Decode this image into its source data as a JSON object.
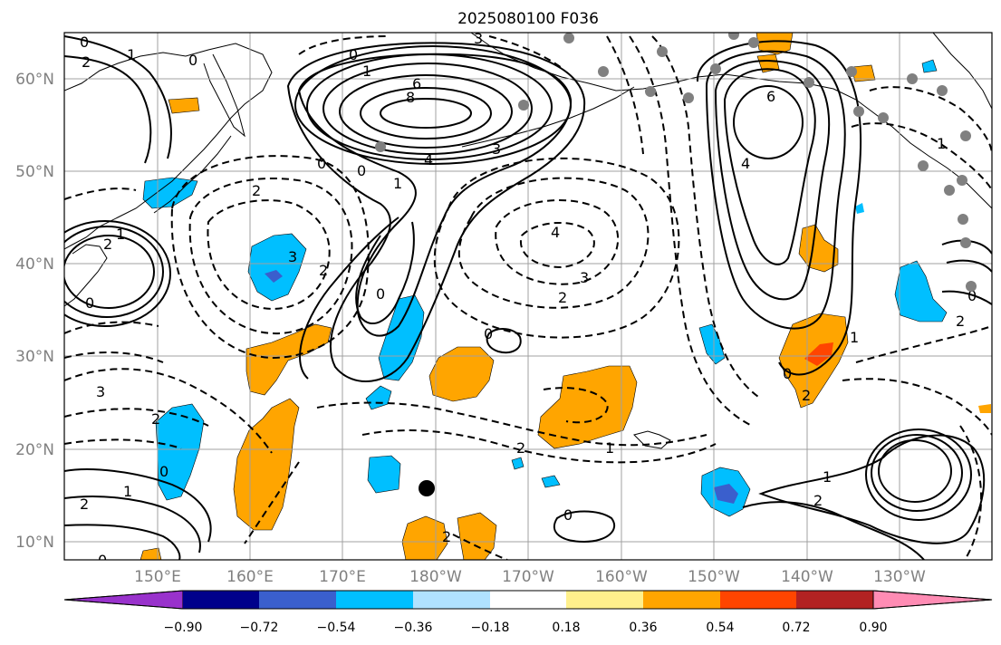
{
  "title": "2025080100 F036",
  "lat_labels": [
    "60°N",
    "50°N",
    "40°N",
    "30°N",
    "20°N",
    "10°N"
  ],
  "lon_labels": [
    "150°E",
    "160°E",
    "170°E",
    "180°W",
    "170°W",
    "160°W",
    "150°W",
    "140°W",
    "130°W"
  ],
  "colorbar": {
    "tick_labels": [
      "−0.90",
      "−0.72",
      "−0.54",
      "−0.36",
      "−0.18",
      "0.18",
      "0.36",
      "0.54",
      "0.72",
      "0.90"
    ],
    "colors": [
      "#9932cc",
      "#00008b",
      "#3a5fcd",
      "#00bfff",
      "#b0e2ff",
      "#ffffff",
      "#fff08c",
      "#ffa500",
      "#ff4500",
      "#b22222",
      "#ff8cb4"
    ]
  },
  "shading_colors": {
    "orange": "#ffa500",
    "red": "#ff4500",
    "cyan": "#00bfff",
    "blue": "#3a5fcd"
  },
  "contour_labels": [
    "0",
    "1",
    "2",
    "0",
    "3",
    "1",
    "0",
    "6",
    "8",
    "4",
    "3",
    "0",
    "0",
    "1",
    "2",
    "3",
    "2",
    "0",
    "4",
    "3",
    "2",
    "0",
    "3",
    "2",
    "0",
    "1",
    "2",
    "0",
    "1",
    "2",
    "0",
    "6",
    "4",
    "0",
    "1",
    "2",
    "2",
    "1",
    "0",
    "2",
    "1",
    "2",
    "1",
    "0",
    "2"
  ]
}
